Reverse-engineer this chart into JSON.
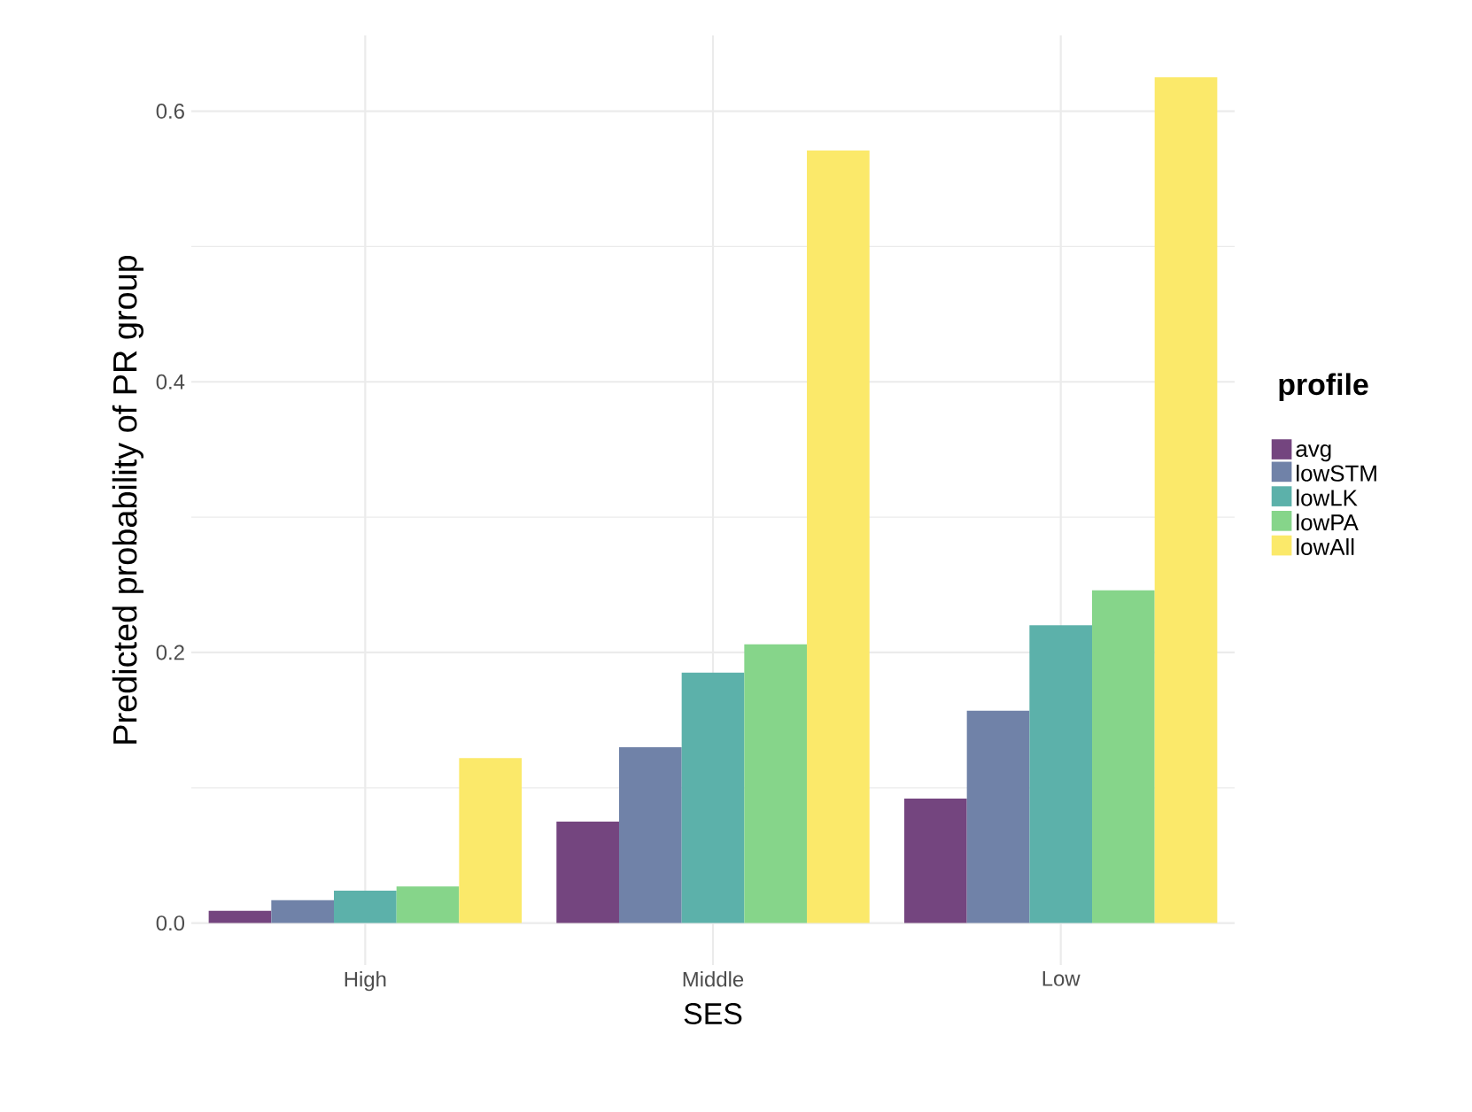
{
  "chart_data": {
    "type": "bar",
    "xlabel": "SES",
    "ylabel": "Predicted probability of PR group",
    "legend_title": "profile",
    "categories": [
      "High",
      "Middle",
      "Low"
    ],
    "series": [
      {
        "name": "avg",
        "color": "#74457f",
        "values": [
          0.009,
          0.075,
          0.092
        ]
      },
      {
        "name": "lowSTM",
        "color": "#7082a8",
        "values": [
          0.017,
          0.13,
          0.157
        ]
      },
      {
        "name": "lowLK",
        "color": "#5cb1aa",
        "values": [
          0.024,
          0.185,
          0.22
        ]
      },
      {
        "name": "lowPA",
        "color": "#86d58a",
        "values": [
          0.027,
          0.206,
          0.246
        ]
      },
      {
        "name": "lowAll",
        "color": "#fbe96a",
        "values": [
          0.122,
          0.571,
          0.625
        ]
      }
    ],
    "ylim": [
      -0.031,
      0.656
    ],
    "yticks": [
      {
        "value": 0,
        "label": "0.0"
      },
      0.2,
      0.4,
      0.6
    ],
    "grid": true,
    "legend": "right"
  }
}
